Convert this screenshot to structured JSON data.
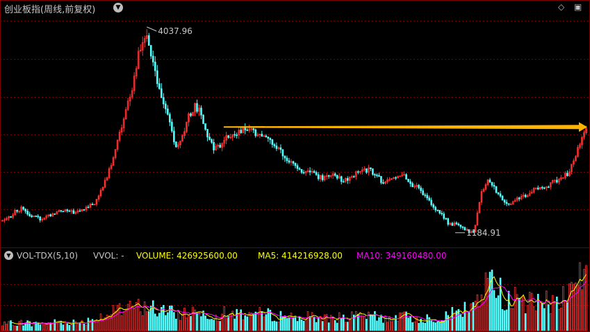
{
  "header": {
    "title": "创业板指(周线,前复权)",
    "dropdown_icon": "chevron-down-icon",
    "diamond_icon": "diamond-icon",
    "window_icon": "window-icon"
  },
  "annotations": {
    "high_label": "4037.96",
    "low_label": "1184.91"
  },
  "volume_header": {
    "indicator": "VOL-TDX(5,10)",
    "vvol": "VVOL: -",
    "volume": "VOLUME: 426925600.00",
    "ma5": "MA5: 414216928.00",
    "ma10": "MA10: 349160480.00"
  },
  "colors": {
    "up": "#ff3232",
    "down": "#54ffff",
    "grid": "#7a0000",
    "arrow": "#ffb400",
    "ma5": "#ffff00",
    "ma10": "#ff00ff",
    "text": "#c8c8c8"
  },
  "chart_data": {
    "type": "candlestick",
    "price_range": [
      1000,
      4200
    ],
    "high": 4037.96,
    "low": 1184.91,
    "arrow_level": 2650,
    "close_path": [
      1350,
      1390,
      1470,
      1520,
      1460,
      1410,
      1380,
      1400,
      1440,
      1480,
      1500,
      1480,
      1460,
      1510,
      1560,
      1600,
      1780,
      2000,
      2300,
      2600,
      2900,
      3200,
      3700,
      3950,
      3650,
      3200,
      3000,
      2700,
      2350,
      2500,
      2800,
      2950,
      2850,
      2500,
      2350,
      2400,
      2550,
      2500,
      2580,
      2650,
      2600,
      2550,
      2500,
      2450,
      2350,
      2300,
      2200,
      2100,
      2050,
      2050,
      2000,
      1950,
      1950,
      2000,
      1950,
      1900,
      1950,
      2000,
      2050,
      2050,
      2000,
      1900,
      1900,
      1950,
      2000,
      1950,
      1850,
      1800,
      1700,
      1600,
      1500,
      1400,
      1300,
      1300,
      1250,
      1200,
      1200,
      1700,
      1900,
      1850,
      1700,
      1600,
      1600,
      1650,
      1700,
      1750,
      1800,
      1800,
      1850,
      1900,
      1950,
      2000,
      2200,
      2450,
      2650
    ],
    "volume_range": [
      0,
      440000000
    ],
    "volume_path": [
      40,
      45,
      50,
      55,
      50,
      45,
      45,
      50,
      55,
      60,
      60,
      55,
      55,
      60,
      70,
      80,
      100,
      110,
      120,
      130,
      140,
      150,
      160,
      170,
      150,
      140,
      130,
      120,
      110,
      115,
      125,
      130,
      125,
      115,
      110,
      110,
      115,
      110,
      115,
      120,
      115,
      110,
      110,
      105,
      100,
      100,
      95,
      95,
      90,
      90,
      88,
      85,
      85,
      90,
      88,
      85,
      88,
      92,
      95,
      95,
      90,
      85,
      85,
      88,
      92,
      90,
      85,
      80,
      80,
      85,
      90,
      100,
      110,
      120,
      130,
      140,
      170,
      250,
      330,
      300,
      260,
      230,
      210,
      200,
      190,
      185,
      180,
      180,
      190,
      200,
      220,
      250,
      300,
      380,
      427
    ],
    "ma5_last": 414216928,
    "ma10_last": 349160480
  }
}
